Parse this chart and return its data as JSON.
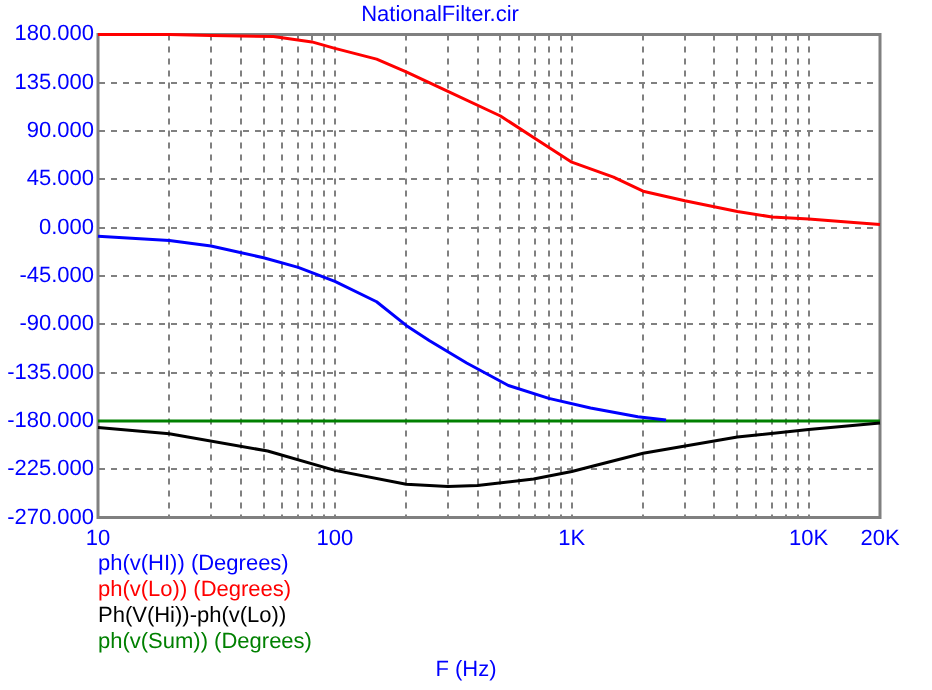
{
  "chart_data": {
    "type": "line",
    "title": "NationalFilter.cir",
    "xlabel": "F (Hz)",
    "log": "x",
    "grid": true,
    "legend": "bottom",
    "marker": "none",
    "line_style": "solid",
    "xlim": [
      10,
      20000
    ],
    "ylim": [
      -270,
      180
    ],
    "xticks": [
      {
        "value": 10,
        "label": "10"
      },
      {
        "value": 20,
        "label": null
      },
      {
        "value": 30,
        "label": null
      },
      {
        "value": 40,
        "label": null
      },
      {
        "value": 50,
        "label": null
      },
      {
        "value": 60,
        "label": null
      },
      {
        "value": 70,
        "label": null
      },
      {
        "value": 80,
        "label": null
      },
      {
        "value": 90,
        "label": null
      },
      {
        "value": 100,
        "label": "100"
      },
      {
        "value": 200,
        "label": null
      },
      {
        "value": 300,
        "label": null
      },
      {
        "value": 400,
        "label": null
      },
      {
        "value": 500,
        "label": null
      },
      {
        "value": 600,
        "label": null
      },
      {
        "value": 700,
        "label": null
      },
      {
        "value": 800,
        "label": null
      },
      {
        "value": 900,
        "label": null
      },
      {
        "value": 1000,
        "label": "1K"
      },
      {
        "value": 2000,
        "label": null
      },
      {
        "value": 3000,
        "label": null
      },
      {
        "value": 4000,
        "label": null
      },
      {
        "value": 5000,
        "label": null
      },
      {
        "value": 6000,
        "label": null
      },
      {
        "value": 7000,
        "label": null
      },
      {
        "value": 8000,
        "label": null
      },
      {
        "value": 9000,
        "label": null
      },
      {
        "value": 10000,
        "label": "10K"
      },
      {
        "value": 20000,
        "label": "20K"
      }
    ],
    "yticks": [
      {
        "value": -270,
        "label": "-270.000"
      },
      {
        "value": -225,
        "label": "-225.000"
      },
      {
        "value": -180,
        "label": "-180.000"
      },
      {
        "value": -135,
        "label": "-135.000"
      },
      {
        "value": -90,
        "label": "-90.000"
      },
      {
        "value": -45,
        "label": "-45.000"
      },
      {
        "value": 0,
        "label": "0.000"
      },
      {
        "value": 45,
        "label": "45.000"
      },
      {
        "value": 90,
        "label": "90.000"
      },
      {
        "value": 135,
        "label": "135.000"
      },
      {
        "value": 180,
        "label": "180.000"
      }
    ],
    "series": [
      {
        "name": "ph(v(HI)) (Degrees)",
        "color": "#0000ff",
        "x": [
          10,
          20,
          30,
          50,
          70,
          100,
          150,
          200,
          250,
          360,
          540,
          800,
          1200,
          1900,
          2500
        ],
        "values": [
          -8,
          -12,
          -17,
          -28,
          -37,
          -50,
          -69,
          -91,
          -105,
          -126,
          -147,
          -159,
          -168,
          -176,
          -179
        ]
      },
      {
        "name": "ph(v(Lo)) (Degrees)",
        "color": "#ff0000",
        "x": [
          10,
          20,
          30,
          55,
          80,
          100,
          150,
          200,
          300,
          500,
          700,
          1000,
          1500,
          2000,
          3000,
          5000,
          7000,
          10000,
          15000,
          20000
        ],
        "values": [
          180,
          180,
          179,
          178,
          173,
          167,
          157,
          145,
          127,
          104,
          83,
          61,
          47,
          34,
          25,
          15,
          10,
          8,
          5,
          3
        ]
      },
      {
        "name": "Ph(V(Hi))-ph(v(Lo))",
        "color": "#000000",
        "x": [
          10,
          20,
          52,
          100,
          200,
          300,
          400,
          690,
          1000,
          2000,
          5000,
          10000,
          20000
        ],
        "values": [
          -186,
          -192,
          -208,
          -226,
          -239,
          -241,
          -240,
          -234,
          -227,
          -210,
          -195,
          -188,
          -182
        ]
      },
      {
        "name": "ph(v(Sum)) (Degrees)",
        "color": "#008000",
        "x": [
          10,
          20000
        ],
        "values": [
          -180,
          -180
        ]
      }
    ]
  }
}
